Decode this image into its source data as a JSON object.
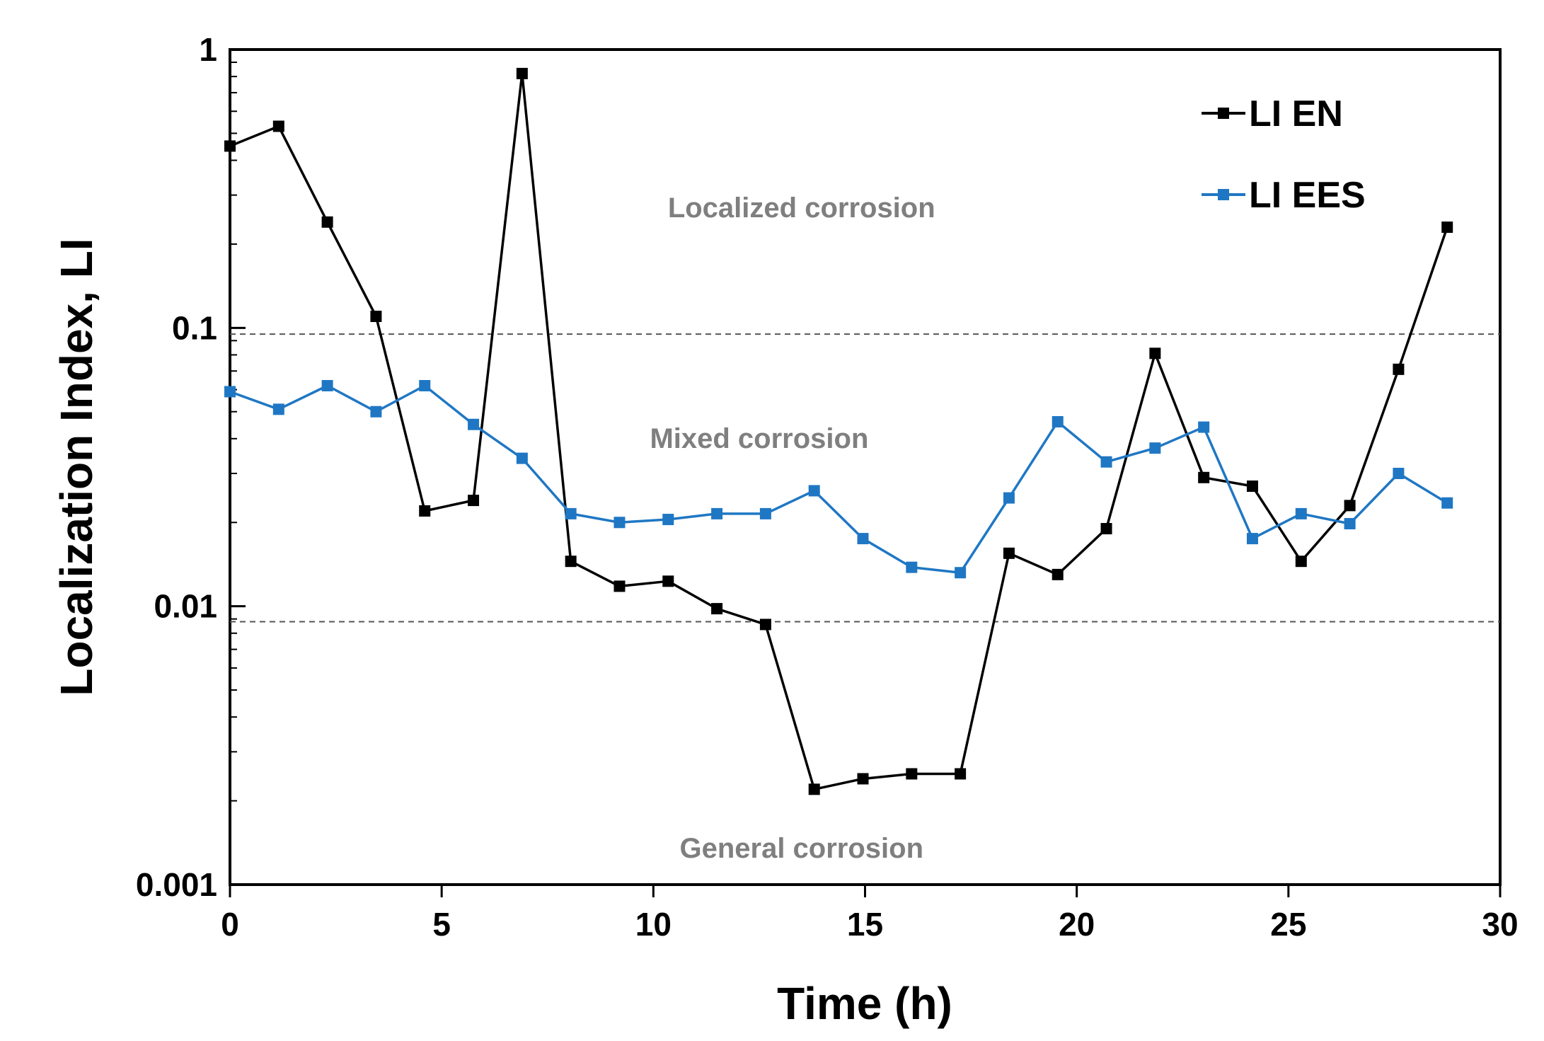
{
  "chart_data": {
    "type": "line",
    "title": "",
    "xlabel": "Time (h)",
    "ylabel": "Localization Index, LI",
    "xlim": [
      0,
      30
    ],
    "ylim": [
      0.001,
      1
    ],
    "yscale": "log",
    "x_ticks": [
      0,
      5,
      10,
      15,
      20,
      25,
      30
    ],
    "x_tick_labels": [
      "0",
      "5",
      "10",
      "15",
      "20",
      "25",
      "30"
    ],
    "y_ticks": [
      0.001,
      0.01,
      0.1,
      1
    ],
    "y_tick_labels": [
      "0.001",
      "0.01",
      "0.1",
      "1"
    ],
    "grid": false,
    "legend_position": "top-right",
    "thresholds": [
      0.095,
      0.0088
    ],
    "regions": [
      {
        "label": "Localized corrosion",
        "x": 13.5,
        "y": 0.25
      },
      {
        "label": "Mixed corrosion",
        "x": 12.5,
        "y": 0.037
      },
      {
        "label": "General corrosion",
        "x": 13.5,
        "y": 0.00125
      }
    ],
    "series": [
      {
        "name": "LI EN",
        "color": "#000000",
        "x": [
          0,
          1.15,
          2.3,
          3.45,
          4.6,
          5.75,
          6.9,
          8.05,
          9.2,
          10.35,
          11.5,
          12.65,
          13.8,
          14.95,
          16.1,
          17.25,
          18.4,
          19.55,
          20.7,
          21.85,
          23.0,
          24.15,
          25.3,
          26.45,
          27.6,
          28.75
        ],
        "values": [
          0.45,
          0.53,
          0.24,
          0.11,
          0.022,
          0.024,
          0.82,
          0.0145,
          0.0118,
          0.0123,
          0.0098,
          0.0086,
          0.0022,
          0.0024,
          0.0025,
          0.0025,
          0.0155,
          0.013,
          0.019,
          0.081,
          0.029,
          0.027,
          0.0145,
          0.023,
          0.071,
          0.23
        ]
      },
      {
        "name": "LI EES",
        "color": "#1f77c4",
        "x": [
          0,
          1.15,
          2.3,
          3.45,
          4.6,
          5.75,
          6.9,
          8.05,
          9.2,
          10.35,
          11.5,
          12.65,
          13.8,
          14.95,
          16.1,
          17.25,
          18.4,
          19.55,
          20.7,
          21.85,
          23.0,
          24.15,
          25.3,
          26.45,
          27.6,
          28.75
        ],
        "values": [
          0.059,
          0.051,
          0.062,
          0.05,
          0.062,
          0.045,
          0.034,
          0.0215,
          0.02,
          0.0205,
          0.0215,
          0.0215,
          0.026,
          0.0175,
          0.0138,
          0.0132,
          0.0245,
          0.046,
          0.033,
          0.037,
          0.044,
          0.0175,
          0.0215,
          0.0198,
          0.03,
          0.0235
        ]
      }
    ]
  }
}
